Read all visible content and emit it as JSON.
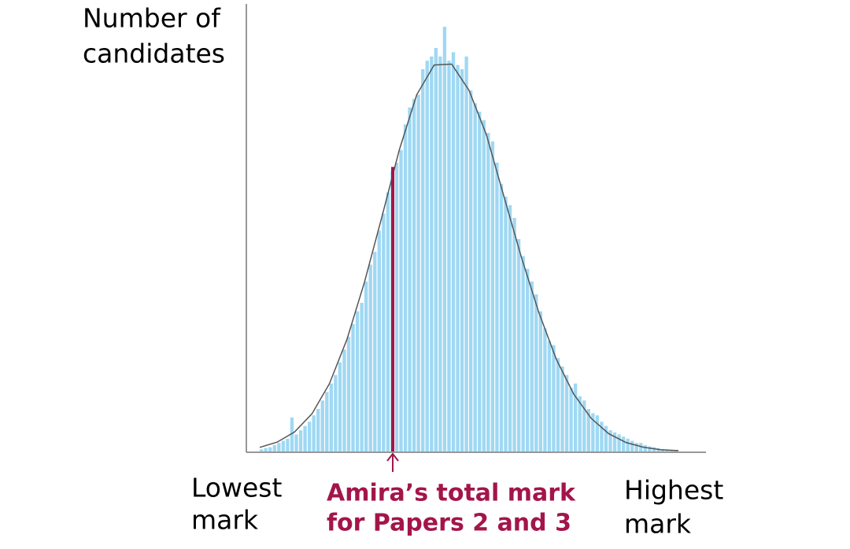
{
  "chart_data": {
    "type": "histogram",
    "y_label": [
      "Number of",
      "candidates"
    ],
    "x_low_label": [
      "Lowest",
      "mark"
    ],
    "x_high_label": [
      "Highest",
      "mark"
    ],
    "color": "#9fd8f3",
    "bins": [
      0,
      1,
      2,
      3,
      4,
      5,
      6,
      7,
      8,
      9,
      10,
      11,
      12,
      13,
      14,
      15,
      16,
      17,
      18,
      19,
      20,
      21,
      22,
      23,
      24,
      25,
      26,
      27,
      28,
      29,
      30,
      31,
      32,
      33,
      34,
      35,
      36,
      37,
      38,
      39,
      40,
      41,
      42,
      43,
      44,
      45,
      46,
      47,
      48,
      49,
      50,
      51,
      52,
      53,
      54,
      55,
      56,
      57,
      58,
      59,
      60,
      61,
      62,
      63,
      64,
      65,
      66,
      67,
      68,
      69,
      70,
      71,
      72,
      73,
      74,
      75,
      76,
      77,
      78,
      79,
      80,
      81,
      82,
      83,
      84,
      85,
      86,
      87,
      88,
      89,
      90,
      91,
      92,
      93,
      94,
      95,
      96
    ],
    "counts": [
      0.5,
      0.8,
      1,
      1.5,
      2,
      2.5,
      3,
      8,
      4,
      5,
      6,
      7,
      8.5,
      10,
      12,
      14,
      16,
      18,
      21,
      24,
      27,
      30,
      33,
      35,
      40,
      44,
      47,
      52,
      56,
      61,
      66,
      68,
      71,
      77,
      81,
      83,
      84,
      90,
      92,
      93,
      95,
      93,
      100,
      92,
      94,
      91,
      90,
      93,
      85,
      82,
      80,
      78,
      75,
      73,
      68,
      63,
      60,
      58,
      55,
      50,
      46,
      43,
      40,
      37,
      33,
      29,
      26,
      25,
      22,
      20,
      18,
      15,
      16,
      13,
      12,
      10,
      9,
      8.5,
      7,
      6,
      5,
      4.5,
      4,
      3.5,
      3,
      2.5,
      2,
      2,
      1.5,
      1.2,
      1,
      0.8,
      0.6,
      0.5,
      0.4,
      0.3
    ],
    "curve": {
      "color": "#555555",
      "x": [
        0,
        4,
        8,
        12,
        16,
        20,
        24,
        28,
        32,
        36,
        40,
        44,
        48,
        52,
        56,
        60,
        64,
        68,
        72,
        76,
        80,
        84,
        88,
        92,
        96
      ],
      "values": [
        0.96,
        2.2,
        4.6,
        8.9,
        16,
        26.4,
        39.8,
        55.2,
        71,
        84,
        91,
        91.2,
        85,
        74.5,
        60,
        45.7,
        32.7,
        21.7,
        13.5,
        7.8,
        4.2,
        2.1,
        1,
        0.4,
        0.2
      ]
    },
    "marker": {
      "x": 30.5,
      "value": 67,
      "color": "#a3154a",
      "label": [
        "Amira’s total mark",
        "for Papers 2 and 3"
      ]
    },
    "xlim": [
      0,
      96
    ],
    "ylim": [
      0,
      100
    ]
  }
}
